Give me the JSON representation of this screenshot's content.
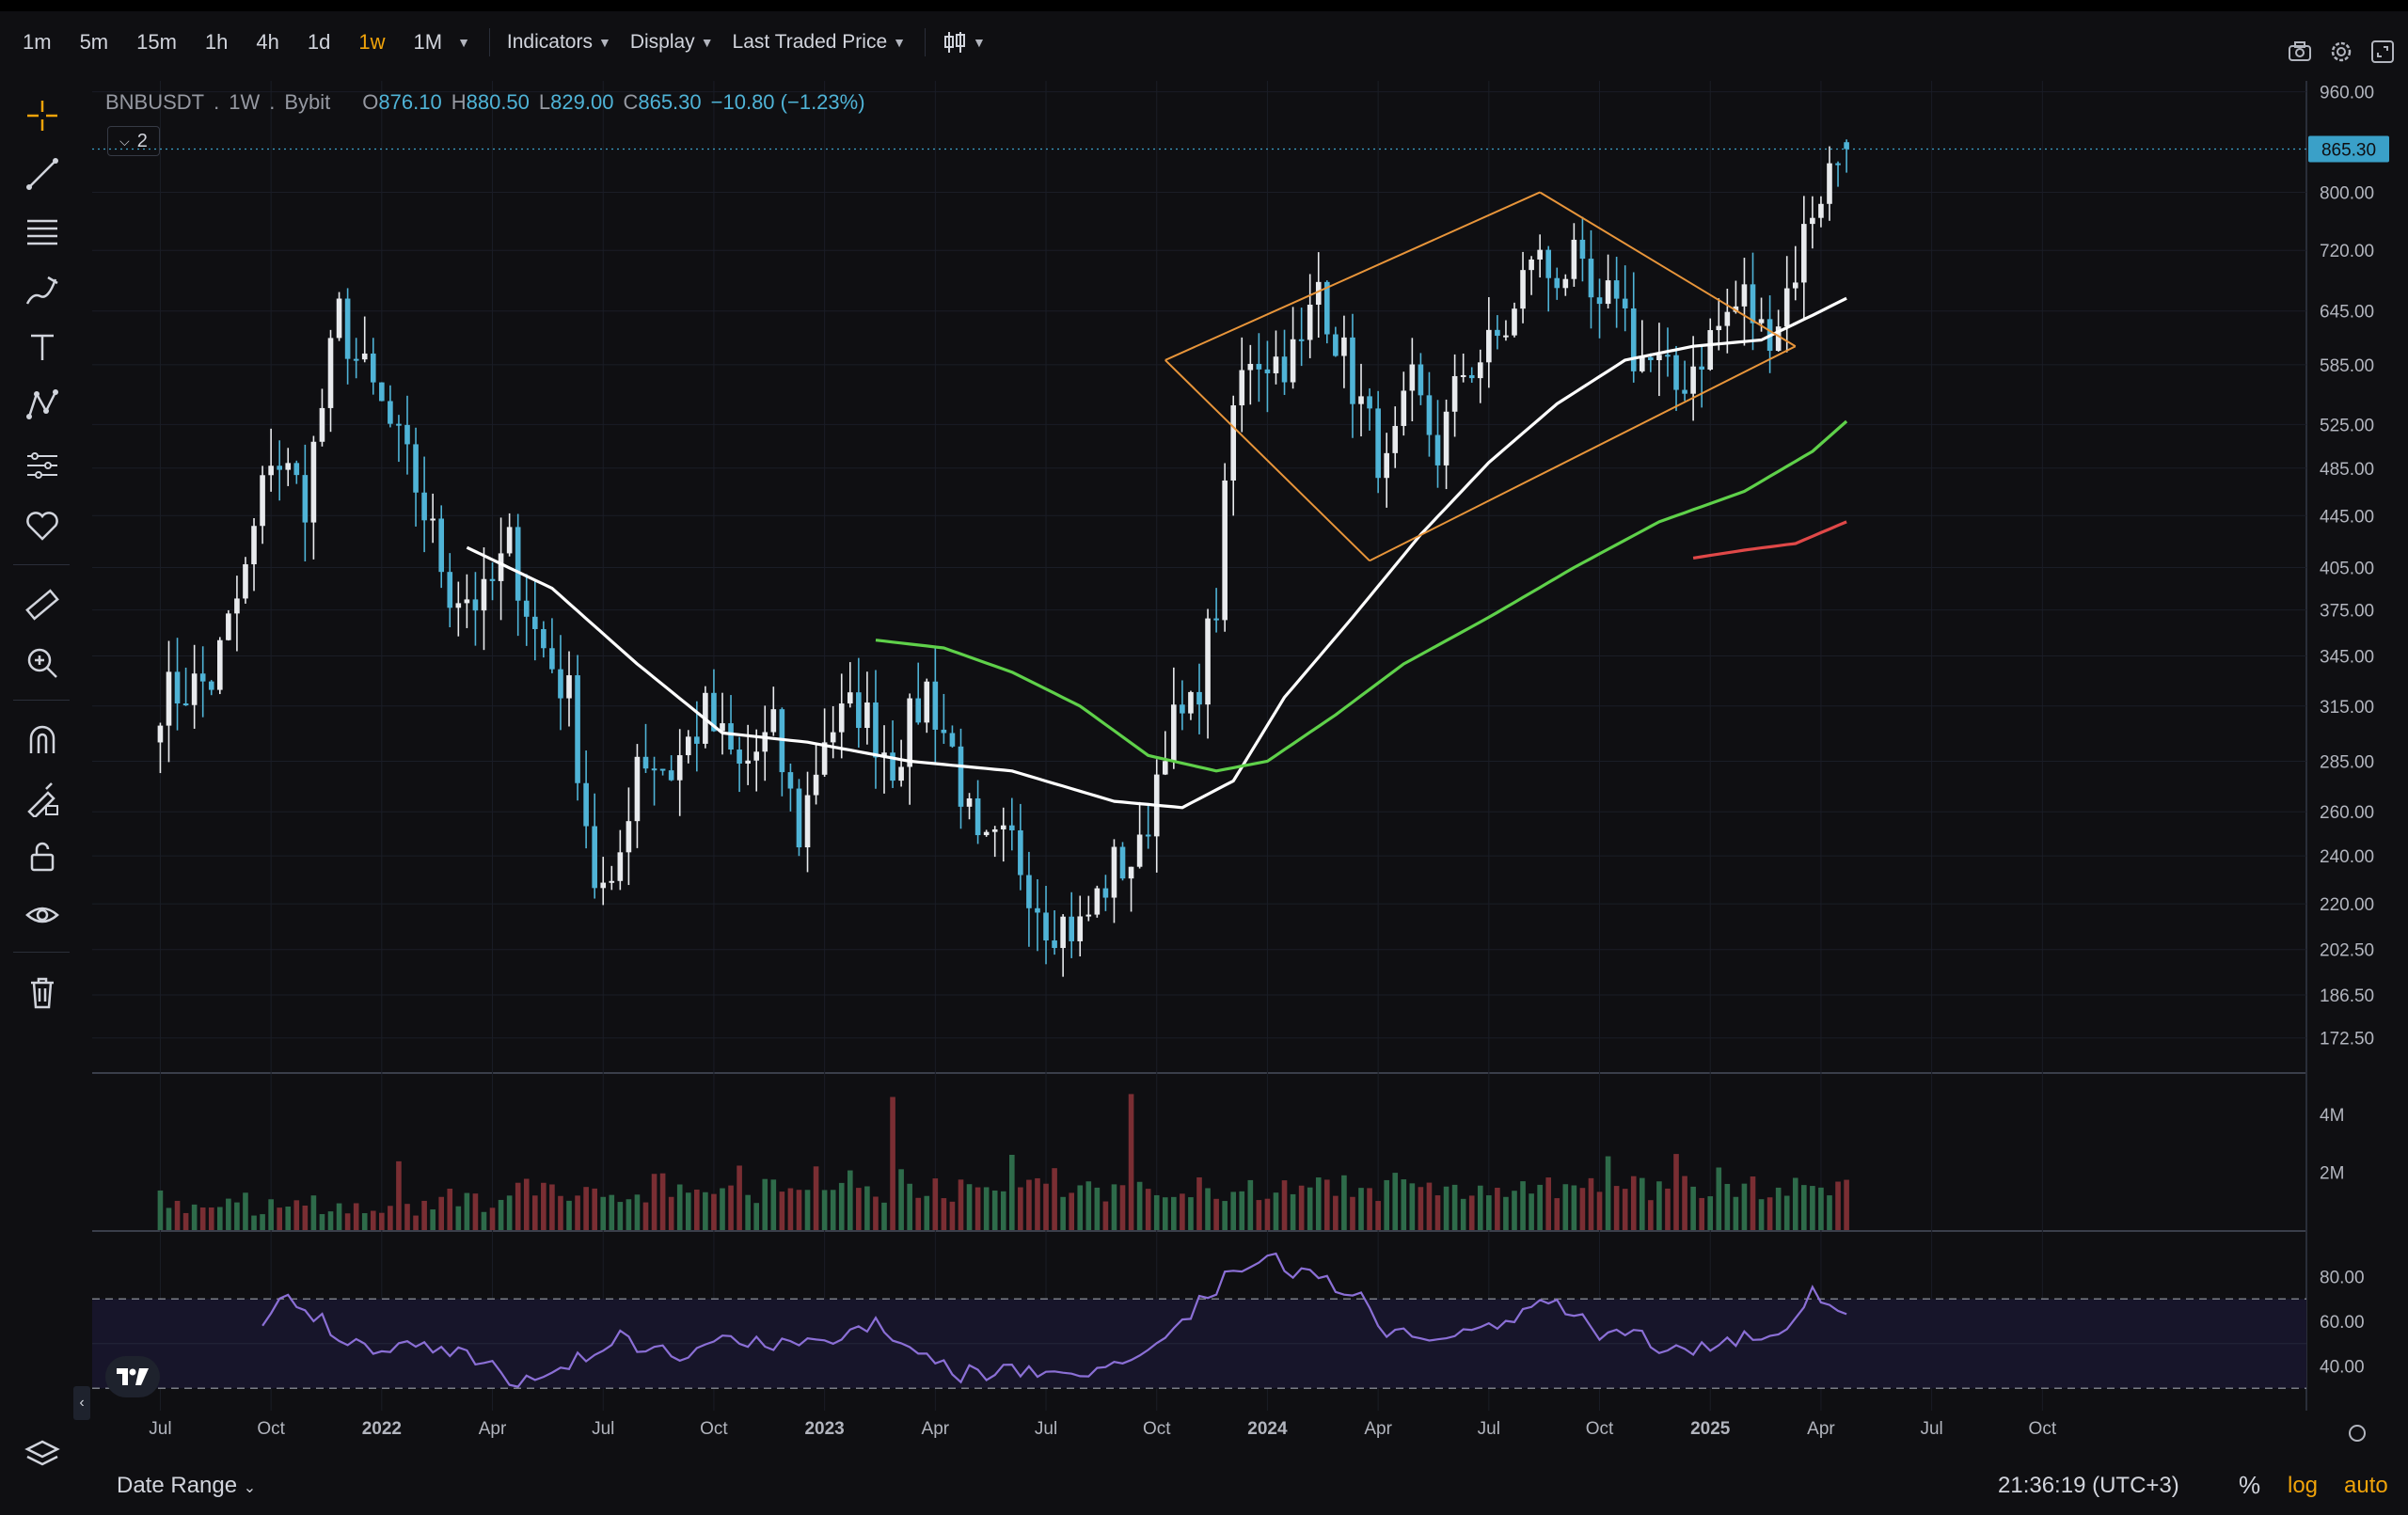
{
  "toolbar": {
    "timeframes": [
      {
        "label": "1m",
        "active": false
      },
      {
        "label": "5m",
        "active": false
      },
      {
        "label": "15m",
        "active": false
      },
      {
        "label": "1h",
        "active": false
      },
      {
        "label": "4h",
        "active": false
      },
      {
        "label": "1d",
        "active": false
      },
      {
        "label": "1w",
        "active": true
      },
      {
        "label": "1M",
        "active": false
      }
    ],
    "indicators_label": "Indicators",
    "display_label": "Display",
    "price_source_label": "Last Traded Price",
    "right_icons": [
      "camera-icon",
      "settings-icon",
      "fullscreen-icon"
    ]
  },
  "left_tools": [
    "crosshair-icon",
    "trend-line-icon",
    "horizontal-lines-icon",
    "brush-icon",
    "text-icon",
    "pattern-icon",
    "projection-icon",
    "favorites-heart-icon",
    "ruler-icon",
    "zoom-in-icon",
    "magnet-icon",
    "lock-drawing-icon",
    "unlock-icon",
    "eye-icon",
    "trash-icon"
  ],
  "legend": {
    "symbol": "BNBUSDT",
    "interval": "1W",
    "exchange": "Bybit",
    "o_label": "O",
    "o_value": "876.10",
    "h_label": "H",
    "h_value": "880.50",
    "l_label": "L",
    "l_value": "829.00",
    "c_label": "C",
    "c_value": "865.30",
    "change": "−10.80 (−1.23%)",
    "collapsed_count": "2"
  },
  "price_axis": {
    "labels": [
      "960.00",
      "800.00",
      "720.00",
      "645.00",
      "585.00",
      "525.00",
      "485.00",
      "445.00",
      "405.00",
      "375.00",
      "345.00",
      "315.00",
      "285.00",
      "260.00",
      "240.00",
      "220.00",
      "202.50",
      "186.50",
      "172.50"
    ],
    "current_price": "865.30"
  },
  "volume_axis": {
    "labels": [
      "4M",
      "2M"
    ]
  },
  "rsi_axis": {
    "labels": [
      "80.00",
      "60.00",
      "40.00"
    ]
  },
  "time_axis": {
    "labels": [
      "Jul",
      "Oct",
      "2022",
      "Apr",
      "Jul",
      "Oct",
      "2023",
      "Apr",
      "Jul",
      "Oct",
      "2024",
      "Apr",
      "Jul",
      "Oct",
      "2025",
      "Apr",
      "Jul",
      "Oct"
    ]
  },
  "chart_data": {
    "type": "candlestick",
    "symbol": "BNBUSDT",
    "interval": "1W",
    "scale": "log",
    "price_range": [
      172.5,
      960
    ],
    "ohlc_last": {
      "open": 876.1,
      "high": 880.5,
      "low": 829.0,
      "close": 865.3
    },
    "close_anchors": [
      {
        "t": 0,
        "p": 320
      },
      {
        "t": 6,
        "p": 330
      },
      {
        "t": 10,
        "p": 400
      },
      {
        "t": 13,
        "p": 500
      },
      {
        "t": 17,
        "p": 460
      },
      {
        "t": 21,
        "p": 640
      },
      {
        "t": 23,
        "p": 590
      },
      {
        "t": 26,
        "p": 540
      },
      {
        "t": 30,
        "p": 470
      },
      {
        "t": 34,
        "p": 390
      },
      {
        "t": 38,
        "p": 380
      },
      {
        "t": 41,
        "p": 420
      },
      {
        "t": 44,
        "p": 360
      },
      {
        "t": 48,
        "p": 320
      },
      {
        "t": 51,
        "p": 230
      },
      {
        "t": 53,
        "p": 220
      },
      {
        "t": 56,
        "p": 290
      },
      {
        "t": 60,
        "p": 280
      },
      {
        "t": 64,
        "p": 310
      },
      {
        "t": 68,
        "p": 280
      },
      {
        "t": 72,
        "p": 300
      },
      {
        "t": 75,
        "p": 250
      },
      {
        "t": 78,
        "p": 300
      },
      {
        "t": 82,
        "p": 315
      },
      {
        "t": 86,
        "p": 285
      },
      {
        "t": 90,
        "p": 325
      },
      {
        "t": 93,
        "p": 290
      },
      {
        "t": 96,
        "p": 240
      },
      {
        "t": 100,
        "p": 245
      },
      {
        "t": 104,
        "p": 215
      },
      {
        "t": 108,
        "p": 210
      },
      {
        "t": 112,
        "p": 235
      },
      {
        "t": 115,
        "p": 240
      },
      {
        "t": 118,
        "p": 300
      },
      {
        "t": 121,
        "p": 310
      },
      {
        "t": 124,
        "p": 380
      },
      {
        "t": 126,
        "p": 540
      },
      {
        "t": 128,
        "p": 600
      },
      {
        "t": 131,
        "p": 590
      },
      {
        "t": 134,
        "p": 600
      },
      {
        "t": 136,
        "p": 680
      },
      {
        "t": 139,
        "p": 590
      },
      {
        "t": 142,
        "p": 520
      },
      {
        "t": 144,
        "p": 480
      },
      {
        "t": 147,
        "p": 560
      },
      {
        "t": 150,
        "p": 500
      },
      {
        "t": 153,
        "p": 580
      },
      {
        "t": 156,
        "p": 600
      },
      {
        "t": 159,
        "p": 640
      },
      {
        "t": 161,
        "p": 720
      },
      {
        "t": 163,
        "p": 690
      },
      {
        "t": 166,
        "p": 700
      },
      {
        "t": 169,
        "p": 630
      },
      {
        "t": 171,
        "p": 680
      },
      {
        "t": 173,
        "p": 600
      },
      {
        "t": 176,
        "p": 580
      },
      {
        "t": 178,
        "p": 560
      },
      {
        "t": 181,
        "p": 600
      },
      {
        "t": 184,
        "p": 640
      },
      {
        "t": 186,
        "p": 660
      },
      {
        "t": 188,
        "p": 620
      },
      {
        "t": 190,
        "p": 640
      },
      {
        "t": 192,
        "p": 700
      },
      {
        "t": 194,
        "p": 780
      },
      {
        "t": 196,
        "p": 830
      },
      {
        "t": 198,
        "p": 865.3
      }
    ],
    "moving_averages": [
      {
        "name": "MA-white",
        "color": "#ffffff",
        "points": [
          {
            "t": 36,
            "p": 420
          },
          {
            "t": 46,
            "p": 390
          },
          {
            "t": 56,
            "p": 340
          },
          {
            "t": 66,
            "p": 300
          },
          {
            "t": 76,
            "p": 295
          },
          {
            "t": 88,
            "p": 285
          },
          {
            "t": 100,
            "p": 280
          },
          {
            "t": 112,
            "p": 265
          },
          {
            "t": 120,
            "p": 262
          },
          {
            "t": 126,
            "p": 275
          },
          {
            "t": 132,
            "p": 320
          },
          {
            "t": 140,
            "p": 370
          },
          {
            "t": 148,
            "p": 430
          },
          {
            "t": 156,
            "p": 490
          },
          {
            "t": 164,
            "p": 545
          },
          {
            "t": 172,
            "p": 590
          },
          {
            "t": 180,
            "p": 605
          },
          {
            "t": 188,
            "p": 612
          },
          {
            "t": 194,
            "p": 640
          },
          {
            "t": 198,
            "p": 660
          }
        ]
      },
      {
        "name": "MA-green",
        "color": "#5fd14a",
        "points": [
          {
            "t": 84,
            "p": 355
          },
          {
            "t": 92,
            "p": 350
          },
          {
            "t": 100,
            "p": 335
          },
          {
            "t": 108,
            "p": 315
          },
          {
            "t": 116,
            "p": 288
          },
          {
            "t": 124,
            "p": 280
          },
          {
            "t": 130,
            "p": 285
          },
          {
            "t": 138,
            "p": 310
          },
          {
            "t": 146,
            "p": 340
          },
          {
            "t": 156,
            "p": 370
          },
          {
            "t": 166,
            "p": 405
          },
          {
            "t": 176,
            "p": 440
          },
          {
            "t": 186,
            "p": 465
          },
          {
            "t": 194,
            "p": 500
          },
          {
            "t": 198,
            "p": 528
          }
        ]
      },
      {
        "name": "MA-red",
        "color": "#e04848",
        "points": [
          {
            "t": 180,
            "p": 412
          },
          {
            "t": 186,
            "p": 418
          },
          {
            "t": 192,
            "p": 423
          },
          {
            "t": 198,
            "p": 440
          }
        ]
      }
    ],
    "drawings": {
      "color": "#e8953a",
      "lines": [
        {
          "from": {
            "t": 118,
            "p": 590
          },
          "to": {
            "t": 162,
            "p": 800
          }
        },
        {
          "from": {
            "t": 162,
            "p": 800
          },
          "to": {
            "t": 192,
            "p": 605
          }
        },
        {
          "from": {
            "t": 118,
            "p": 590
          },
          "to": {
            "t": 142,
            "p": 410
          }
        },
        {
          "from": {
            "t": 142,
            "p": 410
          },
          "to": {
            "t": 192,
            "p": 605
          }
        }
      ]
    },
    "rsi": {
      "range": [
        20,
        100
      ],
      "upper_band": 70,
      "lower_band": 30,
      "color": "#8b6fd6",
      "values_anchor": [
        {
          "t": 12,
          "p": 62
        },
        {
          "t": 15,
          "p": 74
        },
        {
          "t": 19,
          "p": 60
        },
        {
          "t": 24,
          "p": 48
        },
        {
          "t": 30,
          "p": 52
        },
        {
          "t": 36,
          "p": 46
        },
        {
          "t": 42,
          "p": 33
        },
        {
          "t": 48,
          "p": 42
        },
        {
          "t": 54,
          "p": 52
        },
        {
          "t": 60,
          "p": 44
        },
        {
          "t": 66,
          "p": 55
        },
        {
          "t": 72,
          "p": 48
        },
        {
          "t": 78,
          "p": 52
        },
        {
          "t": 84,
          "p": 58
        },
        {
          "t": 88,
          "p": 52
        },
        {
          "t": 94,
          "p": 36
        },
        {
          "t": 100,
          "p": 38
        },
        {
          "t": 106,
          "p": 35
        },
        {
          "t": 112,
          "p": 42
        },
        {
          "t": 118,
          "p": 52
        },
        {
          "t": 122,
          "p": 70
        },
        {
          "t": 126,
          "p": 82
        },
        {
          "t": 130,
          "p": 90
        },
        {
          "t": 134,
          "p": 80
        },
        {
          "t": 140,
          "p": 75
        },
        {
          "t": 144,
          "p": 55
        },
        {
          "t": 150,
          "p": 52
        },
        {
          "t": 156,
          "p": 58
        },
        {
          "t": 160,
          "p": 62
        },
        {
          "t": 164,
          "p": 70
        },
        {
          "t": 168,
          "p": 56
        },
        {
          "t": 174,
          "p": 52
        },
        {
          "t": 178,
          "p": 46
        },
        {
          "t": 184,
          "p": 52
        },
        {
          "t": 190,
          "p": 55
        },
        {
          "t": 194,
          "p": 74
        },
        {
          "t": 198,
          "p": 66
        }
      ]
    },
    "volume_peaks": [
      {
        "t": 86,
        "v": 4.6,
        "up": false
      },
      {
        "t": 114,
        "v": 4.7,
        "up": false
      },
      {
        "t": 100,
        "v": 2.6,
        "up": true
      },
      {
        "t": 77,
        "v": 2.2,
        "up": false
      }
    ]
  },
  "bottom": {
    "date_range_label": "Date Range",
    "clock": "21:36:19 (UTC+3)",
    "pct_label": "%",
    "log_label": "log",
    "auto_label": "auto"
  },
  "colors": {
    "up_candle": "#e8eaed",
    "down_candle": "#4fb3d6",
    "vol_up": "#2e6b4a",
    "vol_down": "#7a2e33",
    "price_tag_bg": "#3aa0c8",
    "accent": "#f0a30a"
  }
}
